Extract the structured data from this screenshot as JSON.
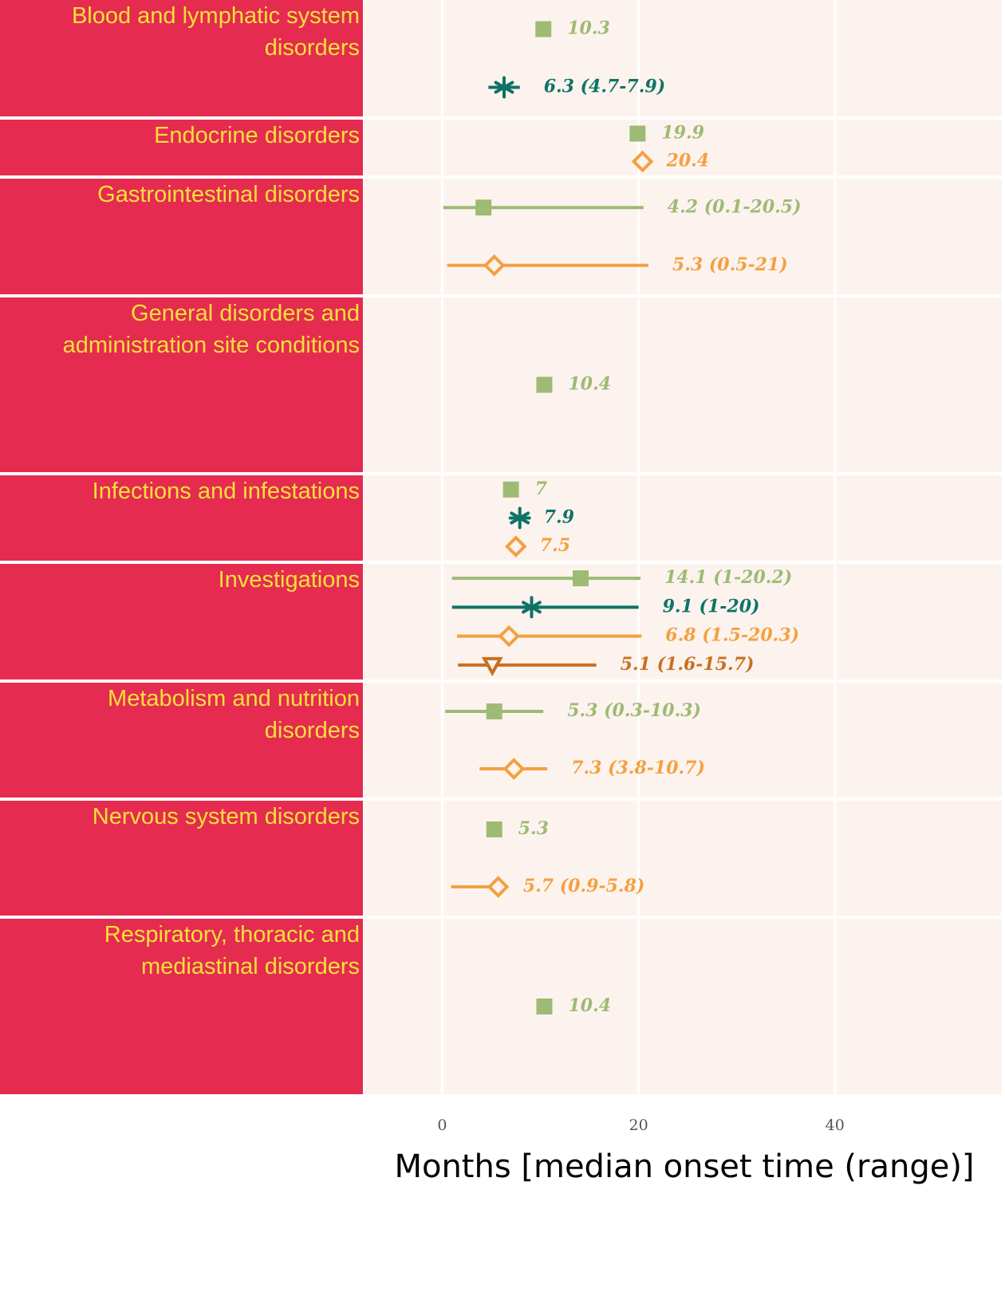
{
  "chart_data": {
    "type": "dot-range",
    "categories": [
      "Blood and lymphatic system disorders",
      "Endocrine disorders",
      "Gastrointestinal disorders",
      "General disorders and administration site conditions",
      "Infections and infestations",
      "Investigations",
      "Metabolism and nutrition disorders",
      "Nervous system disorders",
      "Respiratory, thoracic and mediastinal disorders"
    ],
    "series": [
      {
        "color": "#9dbb74",
        "marker": "square",
        "values": [
          10.3,
          19.9,
          4.2,
          10.4,
          7,
          14.1,
          5.3,
          5.3,
          10.4
        ],
        "low": [
          null,
          null,
          0.1,
          null,
          null,
          1,
          0.3,
          null,
          null
        ],
        "high": [
          null,
          null,
          20.5,
          null,
          null,
          20.2,
          10.3,
          null,
          null
        ],
        "value_labels": [
          "10.3",
          "19.9",
          "4.2 (0.1-20.5)",
          "10.4",
          "7",
          "14.1 (1-20.2)",
          "5.3 (0.3-10.3)",
          "5.3",
          "10.4"
        ]
      },
      {
        "color": "#0e7366",
        "marker": "asterisk",
        "values": [
          6.3,
          null,
          null,
          null,
          7.9,
          9.1,
          null,
          null,
          null
        ],
        "low": [
          4.7,
          null,
          null,
          null,
          null,
          1,
          null,
          null,
          null
        ],
        "high": [
          7.9,
          null,
          null,
          null,
          null,
          20,
          null,
          null,
          null
        ],
        "value_labels": [
          "6.3 (4.7-7.9)",
          null,
          null,
          null,
          "7.9",
          "9.1 (1-20)",
          null,
          null,
          null
        ]
      },
      {
        "color": "#f4a040",
        "marker": "diamond",
        "values": [
          null,
          20.4,
          5.3,
          null,
          7.5,
          6.8,
          7.3,
          5.7,
          null
        ],
        "low": [
          null,
          null,
          0.5,
          null,
          null,
          1.5,
          3.8,
          0.9,
          null
        ],
        "high": [
          null,
          null,
          21,
          null,
          null,
          20.3,
          10.7,
          5.8,
          null
        ],
        "value_labels": [
          null,
          "20.4",
          "5.3 (0.5-21)",
          null,
          "7.5",
          "6.8 (1.5-20.3)",
          "7.3 (3.8-10.7)",
          "5.7 (0.9-5.8)",
          null
        ]
      },
      {
        "color": "#c8701f",
        "marker": "triangle-down",
        "values": [
          null,
          null,
          null,
          null,
          null,
          5.1,
          null,
          null,
          null
        ],
        "low": [
          null,
          null,
          null,
          null,
          null,
          1.6,
          null,
          null,
          null
        ],
        "high": [
          null,
          null,
          null,
          null,
          null,
          15.7,
          null,
          null,
          null
        ],
        "value_labels": [
          null,
          null,
          null,
          null,
          null,
          "5.1 (1.6-15.7)",
          null,
          null,
          null
        ]
      }
    ],
    "xlim": [
      -8,
      57
    ],
    "xticks": [
      0,
      20,
      40
    ],
    "xlabel": "Months [median onset time (range)]",
    "grid": true
  }
}
